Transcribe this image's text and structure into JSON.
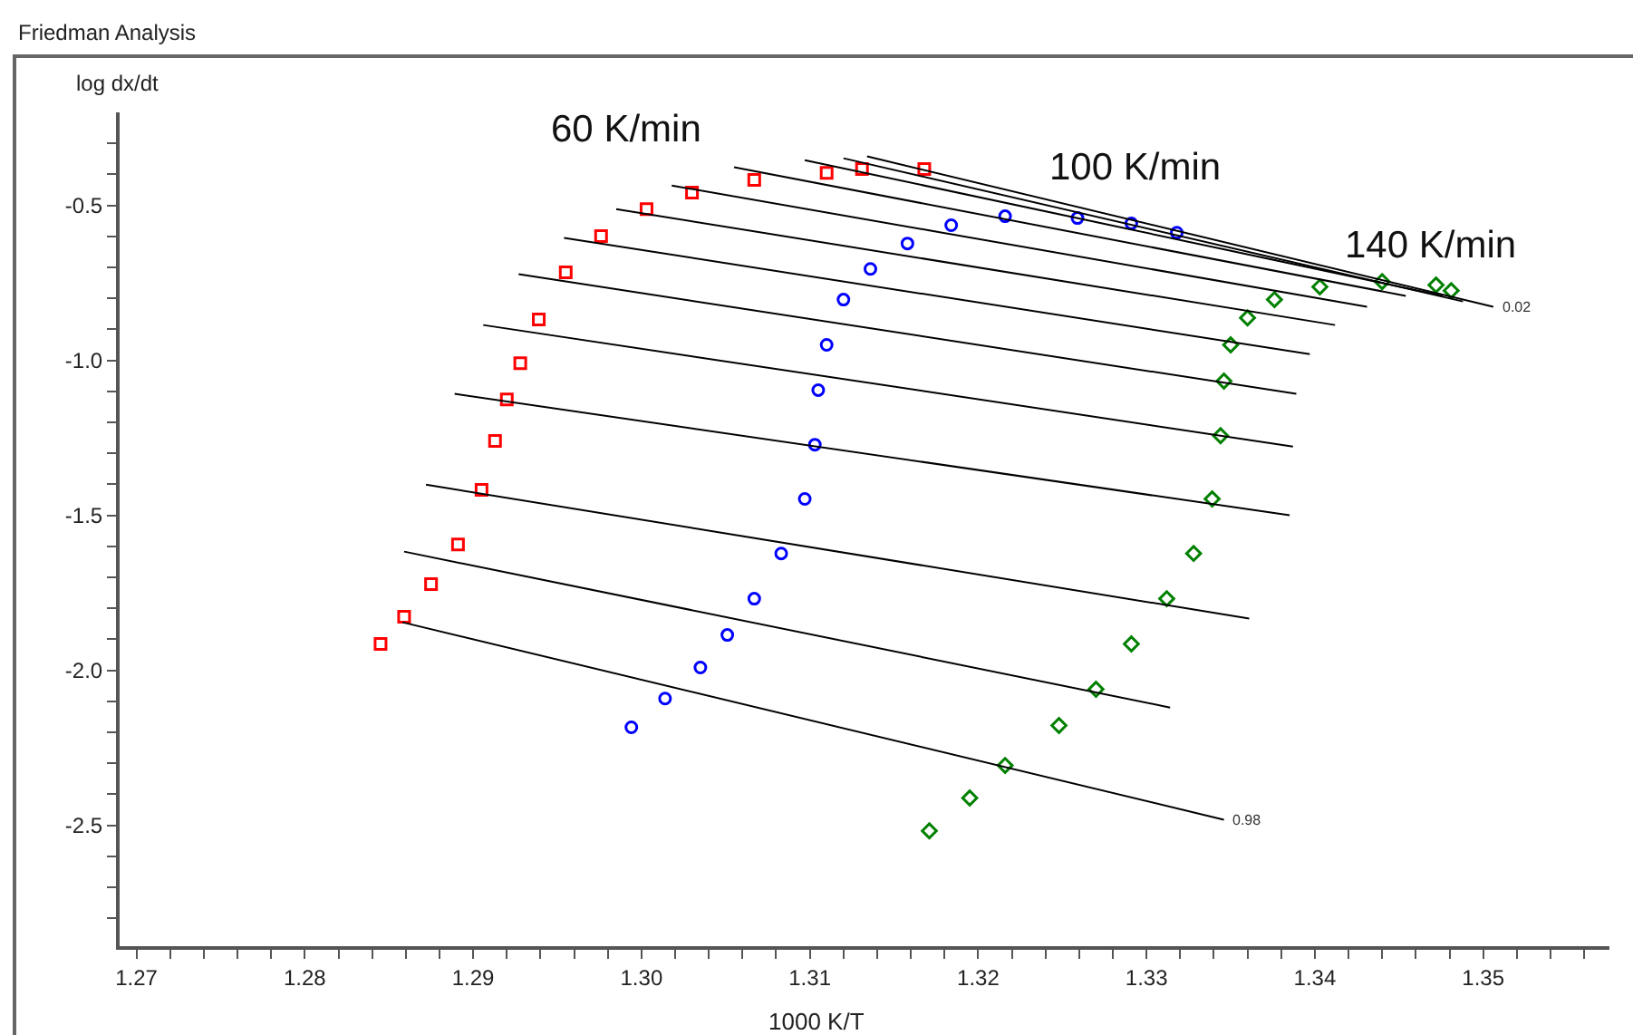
{
  "chart_data": {
    "type": "scatter",
    "title": "Friedman Analysis",
    "xlabel": "1000 K/T",
    "ylabel": "log dx/dt",
    "xlim": [
      1.269,
      1.3575
    ],
    "ylim": [
      -2.89,
      -0.2
    ],
    "xticks": [
      1.27,
      {
        "value": 1.272,
        "label": null
      },
      {
        "value": 1.274,
        "label": null
      },
      {
        "value": 1.276,
        "label": null
      },
      {
        "value": 1.278,
        "label": null
      },
      {
        "value": 1.28,
        "label": "1.28"
      },
      {
        "value": 1.282,
        "label": null
      },
      {
        "value": 1.284,
        "label": null
      },
      {
        "value": 1.286,
        "label": null
      },
      {
        "value": 1.288,
        "label": null
      },
      1.29,
      {
        "value": 1.292,
        "label": null
      },
      {
        "value": 1.294,
        "label": null
      },
      {
        "value": 1.296,
        "label": null
      },
      {
        "value": 1.298,
        "label": null
      },
      {
        "value": 1.3,
        "label": "1.30"
      },
      {
        "value": 1.302,
        "label": null
      },
      {
        "value": 1.304,
        "label": null
      },
      {
        "value": 1.306,
        "label": null
      },
      {
        "value": 1.308,
        "label": null
      },
      1.31,
      {
        "value": 1.312,
        "label": null
      },
      {
        "value": 1.314,
        "label": null
      },
      {
        "value": 1.316,
        "label": null
      },
      {
        "value": 1.318,
        "label": null
      },
      1.32,
      {
        "value": 1.322,
        "label": null
      },
      {
        "value": 1.324,
        "label": null
      },
      {
        "value": 1.326,
        "label": null
      },
      {
        "value": 1.328,
        "label": null
      },
      1.33,
      {
        "value": 1.332,
        "label": null
      },
      {
        "value": 1.334,
        "label": null
      },
      {
        "value": 1.336,
        "label": null
      },
      {
        "value": 1.338,
        "label": null
      },
      1.34,
      {
        "value": 1.342,
        "label": null
      },
      {
        "value": 1.344,
        "label": null
      },
      {
        "value": 1.346,
        "label": null
      },
      {
        "value": 1.348,
        "label": null
      },
      1.35,
      {
        "value": 1.352,
        "label": null
      },
      {
        "value": 1.354,
        "label": null
      },
      {
        "value": 1.356,
        "label": null
      }
    ],
    "yticks": [
      {
        "value": -2.8,
        "label": null
      },
      {
        "value": -2.7,
        "label": null
      },
      {
        "value": -2.6,
        "label": null
      },
      -2.5,
      {
        "value": -2.4,
        "label": null
      },
      {
        "value": -2.3,
        "label": null
      },
      {
        "value": -2.2,
        "label": null
      },
      {
        "value": -2.1,
        "label": null
      },
      {
        "value": -2.0,
        "label": "-2.0"
      },
      {
        "value": -1.9,
        "label": null
      },
      {
        "value": -1.8,
        "label": null
      },
      {
        "value": -1.7,
        "label": null
      },
      {
        "value": -1.6,
        "label": null
      },
      -1.5,
      {
        "value": -1.4,
        "label": null
      },
      {
        "value": -1.3,
        "label": null
      },
      {
        "value": -1.2,
        "label": null
      },
      {
        "value": -1.1,
        "label": null
      },
      {
        "value": -1.0,
        "label": "-1.0"
      },
      {
        "value": -0.9,
        "label": null
      },
      {
        "value": -0.8,
        "label": null
      },
      {
        "value": -0.7,
        "label": null
      },
      {
        "value": -0.6,
        "label": null
      },
      -0.5,
      {
        "value": -0.4,
        "label": null
      },
      {
        "value": -0.3,
        "label": null
      }
    ],
    "series": [
      {
        "name": "60 K/min",
        "marker": "square",
        "color": "#ff0000",
        "x": [
          1.2845,
          1.2859,
          1.2875,
          1.2891,
          1.2905,
          1.2913,
          1.292,
          1.2928,
          1.2939,
          1.2955,
          1.2976,
          1.3003,
          1.303,
          1.3067,
          1.311,
          1.3131,
          1.3168
        ],
        "values": [
          -1.915,
          -1.827,
          -1.722,
          -1.594,
          -1.418,
          -1.26,
          -1.126,
          -1.009,
          -0.868,
          -0.716,
          -0.599,
          -0.512,
          -0.459,
          -0.418,
          -0.395,
          -0.383,
          -0.383
        ]
      },
      {
        "name": "100 K/min",
        "marker": "circle",
        "color": "#0000ff",
        "x": [
          1.2994,
          1.3014,
          1.3035,
          1.3051,
          1.3067,
          1.3083,
          1.3097,
          1.3103,
          1.3105,
          1.311,
          1.312,
          1.3136,
          1.3158,
          1.3184,
          1.3216,
          1.3259,
          1.3291,
          1.3318
        ],
        "values": [
          -2.184,
          -2.091,
          -1.991,
          -1.886,
          -1.769,
          -1.623,
          -1.447,
          -1.272,
          -1.096,
          -0.95,
          -0.804,
          -0.705,
          -0.623,
          -0.564,
          -0.535,
          -0.541,
          -0.558,
          -0.588
        ]
      },
      {
        "name": "140 K/min",
        "marker": "diamond",
        "color": "#008000",
        "x": [
          1.3171,
          1.3195,
          1.3216,
          1.3248,
          1.327,
          1.3291,
          1.3312,
          1.3328,
          1.3339,
          1.3344,
          1.3346,
          1.335,
          1.336,
          1.3376,
          1.3403,
          1.344,
          1.3472,
          1.3481
        ],
        "values": [
          -2.518,
          -2.412,
          -2.307,
          -2.178,
          -2.061,
          -1.915,
          -1.769,
          -1.623,
          -1.447,
          -1.243,
          -1.067,
          -0.95,
          -0.863,
          -0.804,
          -0.763,
          -0.746,
          -0.757,
          -0.775
        ]
      },
      {
        "type": "line",
        "color": "#000000",
        "x": [
          1.3134,
          1.3506
        ],
        "values": [
          -0.342,
          -0.827
        ]
      },
      {
        "type": "line",
        "color": "#000000",
        "x": [
          1.312,
          1.3488
        ],
        "values": [
          -0.348,
          -0.81
        ]
      },
      {
        "type": "line",
        "color": "#000000",
        "x": [
          1.3097,
          1.3476
        ],
        "values": [
          -0.354,
          -0.792
        ]
      },
      {
        "type": "line",
        "color": "#000000",
        "x": [
          1.3055,
          1.3454
        ],
        "values": [
          -0.377,
          -0.792
        ]
      },
      {
        "type": "line",
        "color": "#000000",
        "x": [
          1.3018,
          1.3431
        ],
        "values": [
          -0.436,
          -0.827
        ]
      },
      {
        "type": "line",
        "color": "#000000",
        "x": [
          1.2985,
          1.3412
        ],
        "values": [
          -0.512,
          -0.886
        ]
      },
      {
        "type": "line",
        "color": "#000000",
        "x": [
          1.2954,
          1.3397
        ],
        "values": [
          -0.605,
          -0.98
        ]
      },
      {
        "type": "line",
        "color": "#000000",
        "x": [
          1.2927,
          1.3389
        ],
        "values": [
          -0.722,
          -1.108
        ]
      },
      {
        "type": "line",
        "color": "#000000",
        "x": [
          1.2906,
          1.3387
        ],
        "values": [
          -0.886,
          -1.278
        ]
      },
      {
        "type": "line",
        "color": "#000000",
        "x": [
          1.2889,
          1.3385
        ],
        "values": [
          -1.108,
          -1.5
        ]
      },
      {
        "type": "line",
        "color": "#000000",
        "x": [
          1.2872,
          1.3361
        ],
        "values": [
          -1.401,
          -1.833
        ]
      },
      {
        "type": "line",
        "color": "#000000",
        "x": [
          1.2859,
          1.3314
        ],
        "values": [
          -1.617,
          -2.12
        ]
      },
      {
        "type": "line",
        "color": "#000000",
        "x": [
          1.2858,
          1.3346
        ],
        "values": [
          -1.845,
          -2.482
        ]
      }
    ],
    "annotations": [
      {
        "text": "0.02",
        "x": 1.3506,
        "y": -0.827
      },
      {
        "text": "0.98",
        "x": 1.3346,
        "y": -2.482
      }
    ]
  }
}
